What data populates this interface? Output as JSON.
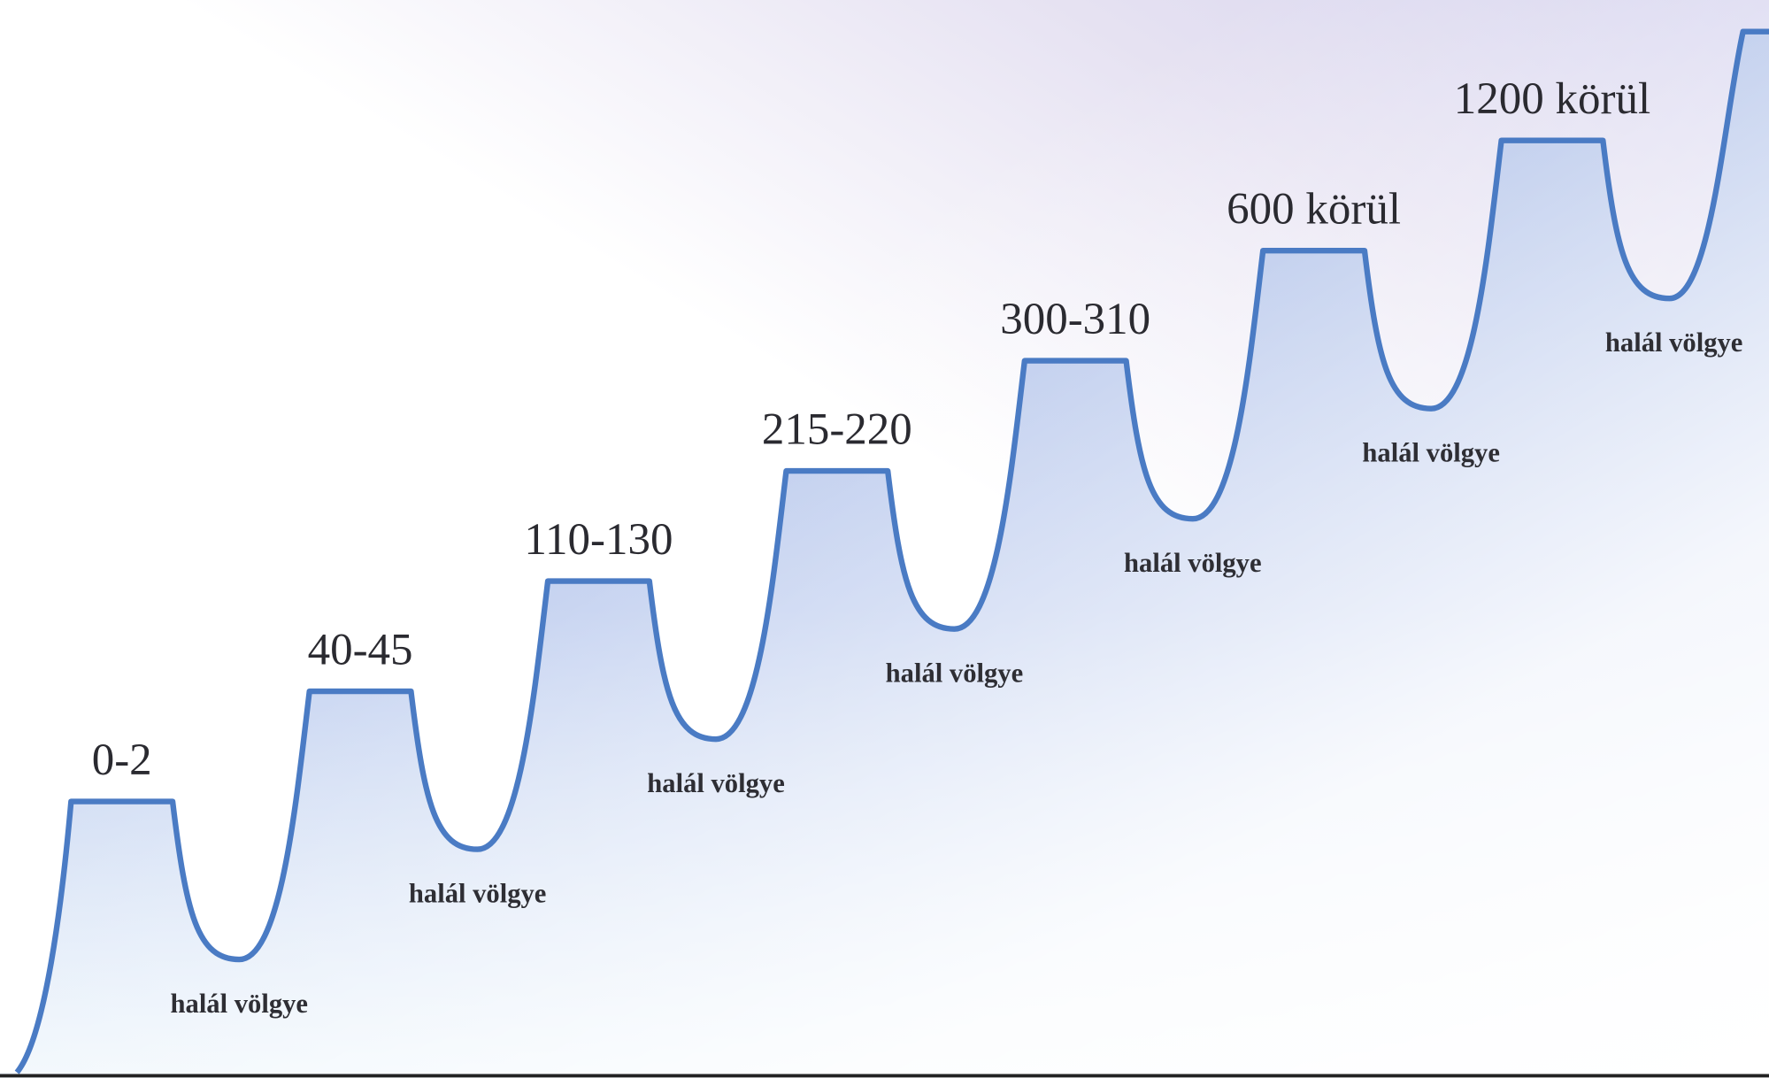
{
  "plateaus": [
    {
      "label": "0-2"
    },
    {
      "label": "40-45"
    },
    {
      "label": "110-130"
    },
    {
      "label": "215-220"
    },
    {
      "label": "300-310"
    },
    {
      "label": "600 körül"
    },
    {
      "label": "1200 körül"
    }
  ],
  "valleys": [
    {
      "label": "halál völgye"
    },
    {
      "label": "halál völgye"
    },
    {
      "label": "halál völgye"
    },
    {
      "label": "halál völgye"
    },
    {
      "label": "halál völgye"
    },
    {
      "label": "halál völgye"
    },
    {
      "label": "halál völgye"
    }
  ]
}
